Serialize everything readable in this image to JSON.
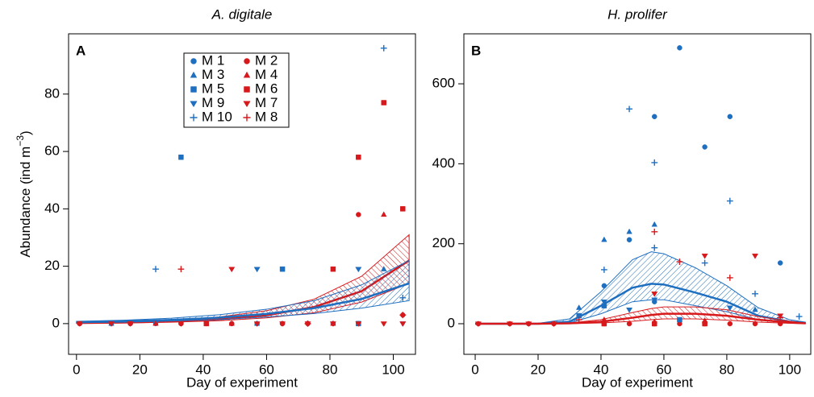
{
  "chart_data": [
    {
      "type": "scatter",
      "title": "A. digitale",
      "panel_label": "A",
      "xlabel": "Day of experiment",
      "ylabel": "Abundance (ind m",
      "ylabel_sup": "−3",
      "ylabel_end": ")",
      "xlim": [
        -2.5,
        107
      ],
      "ylim": [
        -10.7,
        101
      ],
      "xticks": [
        0,
        20,
        40,
        60,
        80,
        100
      ],
      "yticks": [
        0,
        20,
        40,
        60,
        80
      ],
      "legend": true,
      "series": [
        {
          "name": "M 1",
          "color": "#1f6fc0",
          "marker": "circle",
          "x": [
            1,
            11,
            17,
            25,
            33,
            41,
            49,
            57,
            65,
            73,
            81,
            89
          ],
          "values": [
            0,
            0,
            0,
            0,
            0,
            0,
            0,
            0,
            0,
            0,
            0,
            0
          ]
        },
        {
          "name": "M 2",
          "color": "#d7191c",
          "marker": "circle",
          "x": [
            1,
            17,
            33,
            49,
            65,
            73,
            89,
            103
          ],
          "values": [
            0,
            0,
            0,
            0,
            0,
            0,
            38,
            3
          ]
        },
        {
          "name": "M 3",
          "color": "#1f6fc0",
          "marker": "triangle",
          "x": [
            11,
            41,
            57,
            97
          ],
          "values": [
            0,
            0,
            0,
            19
          ]
        },
        {
          "name": "M 4",
          "color": "#d7191c",
          "marker": "triangle",
          "x": [
            25,
            49,
            81,
            97
          ],
          "values": [
            0,
            0,
            0,
            38
          ]
        },
        {
          "name": "M 5",
          "color": "#1f6fc0",
          "marker": "square",
          "x": [
            33,
            65,
            89
          ],
          "values": [
            58,
            19,
            0
          ]
        },
        {
          "name": "M 6",
          "color": "#d7191c",
          "marker": "square",
          "x": [
            41,
            81,
            89,
            97,
            103
          ],
          "values": [
            0,
            19,
            58,
            77,
            40
          ]
        },
        {
          "name": "M 9",
          "color": "#1f6fc0",
          "marker": "triangle-down",
          "x": [
            57,
            89,
            103
          ],
          "values": [
            19,
            19,
            0
          ]
        },
        {
          "name": "M 7",
          "color": "#d7191c",
          "marker": "triangle-down",
          "x": [
            1,
            11,
            17,
            33,
            49,
            57,
            65,
            73,
            81,
            89,
            97,
            103
          ],
          "values": [
            0,
            0,
            0,
            0,
            19,
            0,
            0,
            0,
            0,
            0,
            0,
            0
          ]
        },
        {
          "name": "M 10",
          "color": "#1f6fc0",
          "marker": "plus",
          "x": [
            25,
            97,
            103
          ],
          "values": [
            19,
            96,
            9
          ]
        },
        {
          "name": "M 8",
          "color": "#d7191c",
          "marker": "plus",
          "x": [
            33,
            73,
            103
          ],
          "values": [
            19,
            0,
            3
          ]
        }
      ],
      "fits": [
        {
          "color": "#d7191c",
          "x": [
            0,
            15,
            30,
            45,
            60,
            75,
            90,
            105
          ],
          "values": [
            0.2,
            0.39,
            0.77,
            1.5,
            2.9,
            5.8,
            11.3,
            22
          ],
          "lower": [
            0.1,
            0.25,
            0.5,
            1,
            2,
            3.8,
            7.5,
            14
          ],
          "upper": [
            0.35,
            0.6,
            1.2,
            2.3,
            4.5,
            8.5,
            16.5,
            31
          ]
        },
        {
          "color": "#1f6fc0",
          "x": [
            0,
            15,
            30,
            45,
            60,
            75,
            90,
            105
          ],
          "values": [
            0.5,
            0.8,
            1.3,
            2.1,
            3.4,
            5.4,
            8.6,
            14
          ],
          "lower": [
            0.3,
            0.5,
            0.9,
            1.4,
            2.3,
            3.5,
            5.4,
            8
          ],
          "upper": [
            0.8,
            1.2,
            1.9,
            3.1,
            5,
            8,
            13.5,
            22
          ]
        }
      ]
    },
    {
      "type": "scatter",
      "title": "H. prolifer",
      "panel_label": "B",
      "xlabel": "Day of experiment",
      "xlim": [
        -3.6,
        106.7
      ],
      "ylim": [
        -76.5,
        725
      ],
      "xticks": [
        0,
        20,
        40,
        60,
        80,
        100
      ],
      "yticks": [
        0,
        200,
        400,
        600
      ],
      "legend": false,
      "series": [
        {
          "name": "M 1",
          "color": "#1f6fc0",
          "marker": "circle",
          "x": [
            41,
            49,
            57,
            57,
            65,
            73,
            81,
            97
          ],
          "values": [
            95,
            210,
            518,
            55,
            690,
            442,
            518,
            152
          ]
        },
        {
          "name": "M 2",
          "color": "#d7191c",
          "marker": "circle",
          "x": [
            1,
            11,
            17,
            25,
            41,
            49,
            57,
            65,
            73,
            81,
            89,
            97
          ],
          "values": [
            0,
            0,
            0,
            0,
            0,
            0,
            0,
            0,
            0,
            0,
            0,
            0
          ]
        },
        {
          "name": "M 3",
          "color": "#1f6fc0",
          "marker": "triangle",
          "x": [
            33,
            41,
            49,
            57,
            89
          ],
          "values": [
            40,
            210,
            230,
            248,
            35
          ]
        },
        {
          "name": "M 4",
          "color": "#d7191c",
          "marker": "triangle",
          "x": [
            41,
            57,
            73
          ],
          "values": [
            10,
            5,
            8
          ]
        },
        {
          "name": "M 5",
          "color": "#1f6fc0",
          "marker": "square",
          "x": [
            33,
            41,
            65
          ],
          "values": [
            20,
            45,
            10
          ]
        },
        {
          "name": "M 6",
          "color": "#d7191c",
          "marker": "square",
          "x": [
            41,
            57,
            73
          ],
          "values": [
            0,
            0,
            0
          ]
        },
        {
          "name": "M 9",
          "color": "#1f6fc0",
          "marker": "triangle-down",
          "x": [
            41,
            49,
            57,
            81
          ],
          "values": [
            55,
            35,
            60,
            40
          ]
        },
        {
          "name": "M 7",
          "color": "#d7191c",
          "marker": "triangle-down",
          "x": [
            1,
            11,
            17,
            25,
            57,
            73,
            89,
            97
          ],
          "values": [
            0,
            0,
            0,
            0,
            75,
            170,
            170,
            20
          ]
        },
        {
          "name": "M 10",
          "color": "#1f6fc0",
          "marker": "plus",
          "x": [
            41,
            49,
            57,
            57,
            73,
            81,
            89,
            103
          ],
          "values": [
            135,
            537,
            403,
            190,
            152,
            307,
            75,
            18
          ]
        },
        {
          "name": "M 8",
          "color": "#d7191c",
          "marker": "plus",
          "x": [
            33,
            57,
            65,
            81,
            97
          ],
          "values": [
            10,
            230,
            155,
            115,
            15
          ]
        }
      ],
      "fits": [
        {
          "color": "#1f6fc0",
          "x": [
            0,
            10,
            20,
            30,
            40,
            50,
            56,
            60,
            70,
            80,
            90,
            100,
            105
          ],
          "values": [
            0,
            0,
            0,
            5,
            45,
            90,
            100,
            98,
            78,
            55,
            20,
            5,
            2
          ],
          "lower": [
            0,
            0,
            0,
            2,
            25,
            55,
            60,
            60,
            45,
            30,
            10,
            2,
            1
          ],
          "upper": [
            0,
            0,
            1,
            12,
            80,
            160,
            180,
            175,
            140,
            95,
            40,
            10,
            4
          ]
        },
        {
          "color": "#d7191c",
          "x": [
            0,
            10,
            20,
            30,
            40,
            50,
            56,
            60,
            70,
            80,
            90,
            100,
            105
          ],
          "values": [
            0,
            0,
            0,
            1,
            5,
            15,
            22,
            25,
            25,
            20,
            10,
            3,
            1
          ],
          "lower": [
            0,
            0,
            0,
            0,
            2,
            6,
            10,
            12,
            12,
            9,
            4,
            1,
            0
          ],
          "upper": [
            0,
            0,
            0,
            2,
            10,
            28,
            38,
            42,
            42,
            35,
            18,
            6,
            2
          ]
        }
      ]
    }
  ]
}
